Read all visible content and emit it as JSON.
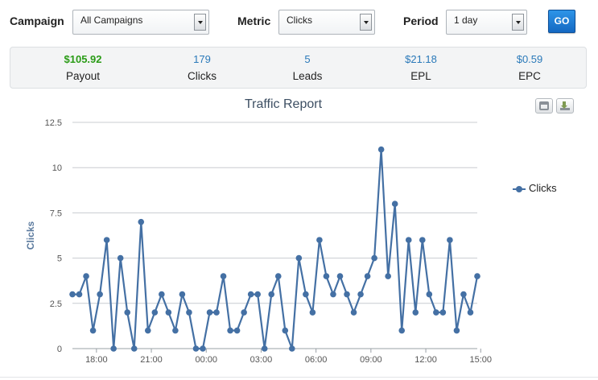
{
  "filters": {
    "campaign_label": "Campaign",
    "campaign_value": "All Campaigns",
    "metric_label": "Metric",
    "metric_value": "Clicks",
    "period_label": "Period",
    "period_value": "1 day",
    "go_label": "GO"
  },
  "stats": [
    {
      "value": "$105.92",
      "label": "Payout"
    },
    {
      "value": "179",
      "label": "Clicks"
    },
    {
      "value": "5",
      "label": "Leads"
    },
    {
      "value": "$21.18",
      "label": "EPL"
    },
    {
      "value": "$0.59",
      "label": "EPC"
    }
  ],
  "colors": {
    "series": "#4470a4",
    "payout": "#2a9b16",
    "stat_value": "#2a79b9",
    "go_button": "#1e7fd8"
  },
  "icons": [
    "print-icon",
    "export-icon"
  ],
  "chart_data": {
    "type": "line",
    "title": "Traffic Report",
    "xlabel": "",
    "ylabel": "Clicks",
    "ylim": [
      0,
      12.5
    ],
    "yticks": [
      "0",
      "2.5",
      "5",
      "7.5",
      "10",
      "12.5"
    ],
    "xticks": [
      "18:00",
      "21:00",
      "00:00",
      "03:00",
      "06:00",
      "09:00",
      "12:00",
      "15:00"
    ],
    "xtick_index": [
      3.5,
      11.5,
      19.5,
      27.5,
      35.5,
      43.5,
      51.5,
      59.5
    ],
    "legend": "right",
    "grid": true,
    "series": [
      {
        "name": "Clicks",
        "values": [
          3,
          3,
          4,
          1,
          3,
          6,
          0,
          5,
          2,
          0,
          7,
          1,
          2,
          3,
          2,
          1,
          3,
          2,
          0,
          0,
          2,
          2,
          4,
          1,
          1,
          2,
          3,
          3,
          0,
          3,
          4,
          1,
          0,
          5,
          3,
          2,
          6,
          4,
          3,
          4,
          3,
          2,
          3,
          4,
          5,
          11,
          4,
          8,
          1,
          6,
          2,
          6,
          3,
          2,
          2,
          6,
          1,
          3,
          2,
          4
        ]
      }
    ]
  }
}
